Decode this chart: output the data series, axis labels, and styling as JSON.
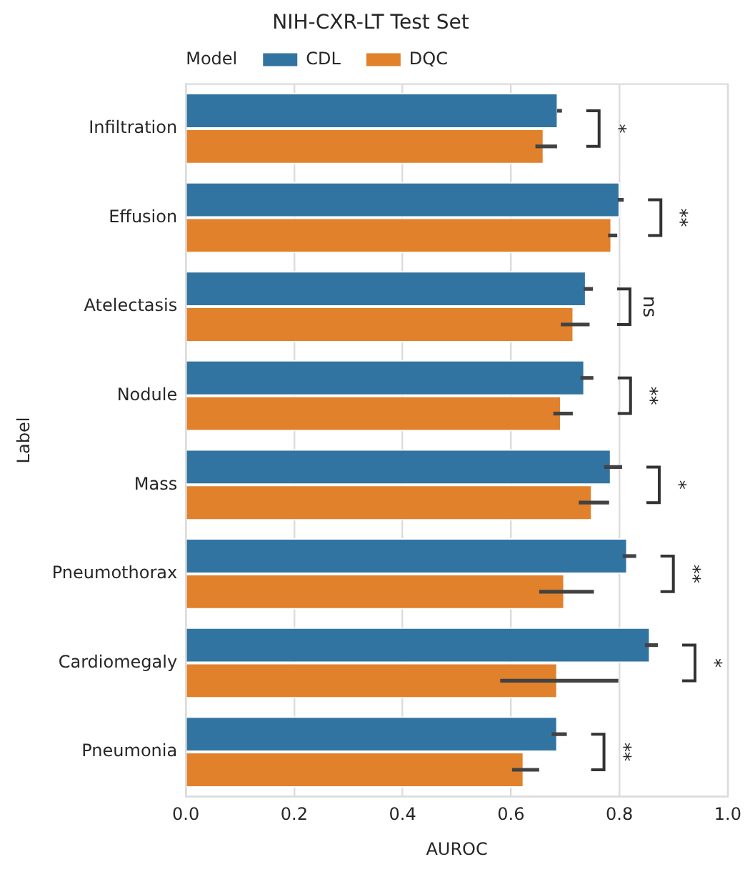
{
  "chart_data": {
    "type": "bar",
    "orientation": "horizontal",
    "title": "NIH-CXR-LT Test Set",
    "xlabel": "AUROC",
    "ylabel": "Label",
    "legend_title": "Model",
    "legend": "top left",
    "grid": "x",
    "categories": [
      "Infiltration",
      "Effusion",
      "Atelectasis",
      "Nodule",
      "Mass",
      "Pneumothorax",
      "Cardiomegaly",
      "Pneumonia"
    ],
    "series": [
      {
        "name": "CDL",
        "color": "#3274a1",
        "values": [
          0.687,
          0.801,
          0.739,
          0.736,
          0.785,
          0.815,
          0.857,
          0.686
        ],
        "errors": [
          [
            0.685,
            0.694
          ],
          [
            0.797,
            0.808
          ],
          [
            0.734,
            0.751
          ],
          [
            0.728,
            0.752
          ],
          [
            0.772,
            0.805
          ],
          [
            0.806,
            0.831
          ],
          [
            0.847,
            0.871
          ],
          [
            0.675,
            0.703
          ]
        ]
      },
      {
        "name": "DQC",
        "color": "#e1812c",
        "values": [
          0.661,
          0.786,
          0.716,
          0.693,
          0.75,
          0.699,
          0.686,
          0.624
        ],
        "errors": [
          [
            0.645,
            0.685
          ],
          [
            0.779,
            0.796
          ],
          [
            0.692,
            0.745
          ],
          [
            0.678,
            0.714
          ],
          [
            0.725,
            0.781
          ],
          [
            0.652,
            0.753
          ],
          [
            0.58,
            0.798
          ],
          [
            0.602,
            0.652
          ]
        ]
      }
    ],
    "xlim": [
      0,
      1.0
    ],
    "xticks": [
      {
        "value": 0,
        "label": "0.0"
      },
      0.2,
      0.4,
      0.6,
      0.8,
      {
        "value": 1.0,
        "label": "1.0"
      }
    ],
    "annotations": [
      "*",
      "**",
      "ns",
      "**",
      "*",
      "**",
      "*",
      "**"
    ]
  }
}
